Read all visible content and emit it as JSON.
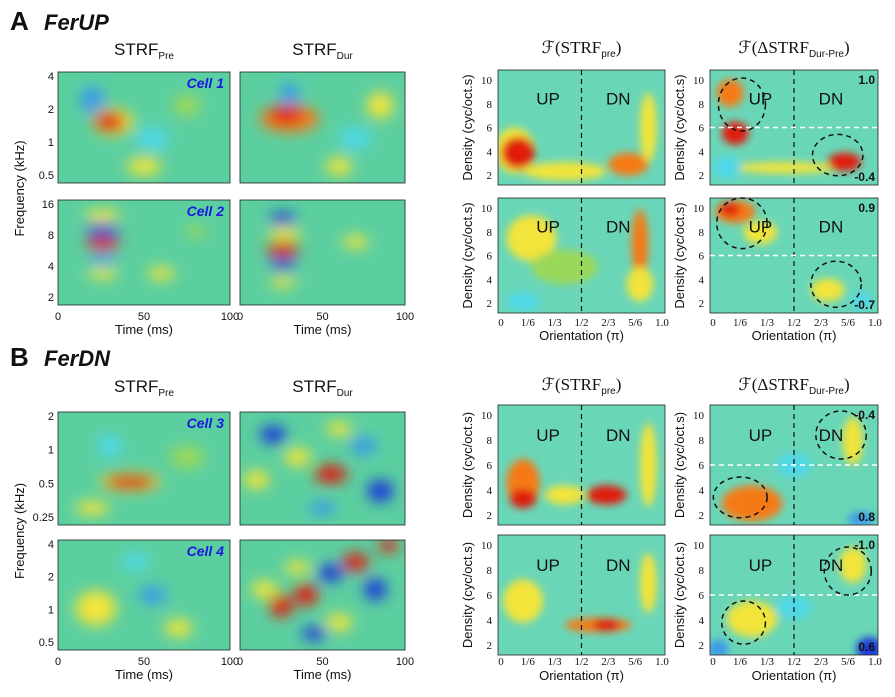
{
  "panels": [
    {
      "letter": "A",
      "name": "FerUP",
      "rows": [
        {
          "cell": "Cell 1",
          "freq_ticks": [
            "4",
            "2",
            "1",
            "0.5"
          ],
          "delta_top": "1.0",
          "delta_bottom": "-0.4"
        },
        {
          "cell": "Cell 2",
          "freq_ticks": [
            "16",
            "8",
            "4",
            "2"
          ],
          "delta_top": "0.9",
          "delta_bottom": "-0.7"
        }
      ]
    },
    {
      "letter": "B",
      "name": "FerDN",
      "rows": [
        {
          "cell": "Cell 3",
          "freq_ticks": [
            "2",
            "1",
            "0.5",
            "0.25"
          ],
          "delta_top": "-0.4",
          "delta_bottom": "0.8"
        },
        {
          "cell": "Cell 4",
          "freq_ticks": [
            "4",
            "2",
            "1",
            "0.5"
          ],
          "delta_top": "-1.0",
          "delta_bottom": "0.6"
        }
      ]
    }
  ],
  "titles": {
    "strf": "STRF",
    "pre": "Pre",
    "dur": "Dur",
    "f_pre_open": "ℱ(STRF",
    "f_pre_sub": "pre",
    "close": ")",
    "f_delta_open": "ℱ(ΔSTRF",
    "f_delta_sub": "Dur-Pre"
  },
  "axes": {
    "freq_label": "Frequency (kHz)",
    "time_label": "Time (ms)",
    "time_ticks": [
      "0",
      "50",
      "100"
    ],
    "density_label": "Density (cyc/oct.s)",
    "density_ticks": [
      "2",
      "4",
      "6",
      "8",
      "10"
    ],
    "orientation_label": "Orientation (π)",
    "orientation_ticks": [
      "0",
      "1/6",
      "1/3",
      "1/2",
      "2/3",
      "5/6",
      "1.0"
    ],
    "up": "UP",
    "dn": "DN"
  }
}
